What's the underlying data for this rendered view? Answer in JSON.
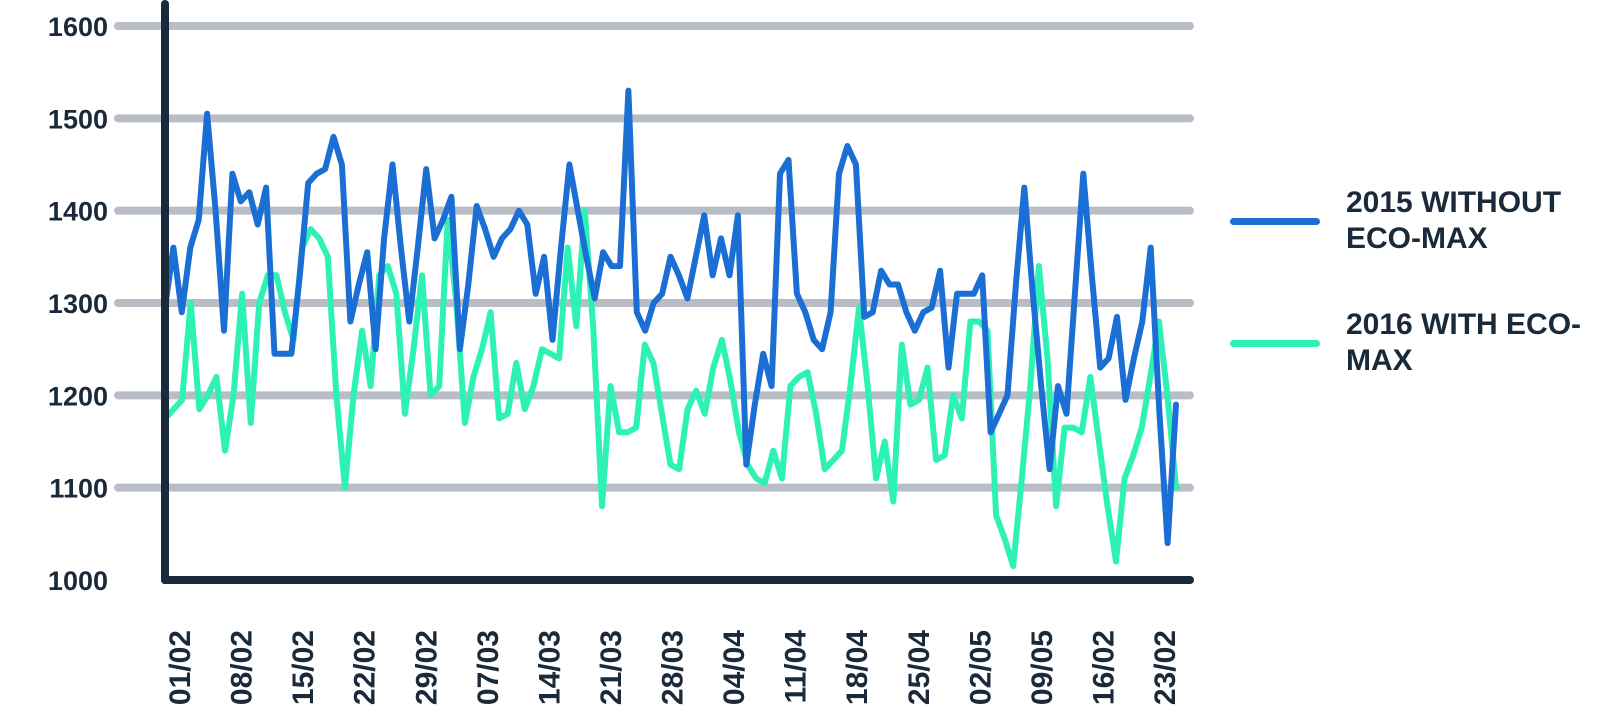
{
  "chart_data": {
    "type": "line",
    "title": "",
    "xlabel": "",
    "ylabel": "",
    "ylim": [
      1000,
      1600
    ],
    "yticks": [
      1000,
      1100,
      1200,
      1300,
      1400,
      1500,
      1600
    ],
    "grid": true,
    "legend_position": "right",
    "x_tick_labels": [
      "01/02",
      "08/02",
      "15/02",
      "22/02",
      "29/02",
      "07/03",
      "14/03",
      "21/03",
      "28/03",
      "04/04",
      "11/04",
      "18/04",
      "25/04",
      "02/05",
      "09/05",
      "16/02",
      "23/02"
    ],
    "series": [
      {
        "name": "2015 WITHOUT ECO-MAX",
        "color": "#1b6fd4",
        "values": [
          1295,
          1360,
          1290,
          1360,
          1390,
          1505,
          1400,
          1270,
          1440,
          1410,
          1420,
          1385,
          1425,
          1245,
          1245,
          1245,
          1330,
          1430,
          1440,
          1445,
          1480,
          1450,
          1280,
          1320,
          1355,
          1250,
          1370,
          1450,
          1360,
          1280,
          1360,
          1445,
          1370,
          1390,
          1415,
          1250,
          1320,
          1405,
          1380,
          1350,
          1370,
          1380,
          1400,
          1385,
          1310,
          1350,
          1260,
          1360,
          1450,
          1400,
          1350,
          1305,
          1355,
          1340,
          1340,
          1530,
          1290,
          1270,
          1300,
          1310,
          1350,
          1330,
          1305,
          1350,
          1395,
          1330,
          1370,
          1330,
          1395,
          1125,
          1190,
          1245,
          1210,
          1440,
          1455,
          1310,
          1290,
          1260,
          1250,
          1290,
          1440,
          1470,
          1450,
          1285,
          1290,
          1335,
          1320,
          1320,
          1290,
          1270,
          1290,
          1295,
          1335,
          1230,
          1310,
          1310,
          1310,
          1330,
          1160,
          1180,
          1200,
          1320,
          1425,
          1310,
          1210,
          1120,
          1210,
          1180,
          1310,
          1440,
          1330,
          1230,
          1240,
          1285,
          1195,
          1240,
          1280,
          1360,
          1185,
          1040,
          1190
        ]
      },
      {
        "name": "2016 WITH ECO-MAX",
        "color": "#2ef2b5",
        "values": [
          1175,
          1185,
          1195,
          1300,
          1185,
          1200,
          1220,
          1140,
          1200,
          1310,
          1170,
          1300,
          1330,
          1330,
          1290,
          1260,
          1360,
          1380,
          1370,
          1350,
          1200,
          1100,
          1200,
          1270,
          1210,
          1330,
          1340,
          1310,
          1180,
          1250,
          1330,
          1200,
          1210,
          1390,
          1300,
          1170,
          1220,
          1250,
          1290,
          1175,
          1180,
          1235,
          1185,
          1210,
          1250,
          1245,
          1240,
          1360,
          1275,
          1400,
          1270,
          1080,
          1210,
          1160,
          1160,
          1165,
          1255,
          1235,
          1180,
          1125,
          1120,
          1185,
          1205,
          1180,
          1230,
          1260,
          1215,
          1160,
          1125,
          1110,
          1105,
          1140,
          1110,
          1210,
          1220,
          1225,
          1180,
          1120,
          1130,
          1140,
          1210,
          1295,
          1210,
          1110,
          1150,
          1085,
          1255,
          1190,
          1195,
          1230,
          1130,
          1135,
          1200,
          1175,
          1280,
          1280,
          1270,
          1070,
          1045,
          1015,
          1110,
          1210,
          1340,
          1240,
          1080,
          1165,
          1165,
          1160,
          1220,
          1150,
          1080,
          1020,
          1110,
          1135,
          1165,
          1220,
          1280,
          1200,
          1100
        ]
      }
    ]
  }
}
